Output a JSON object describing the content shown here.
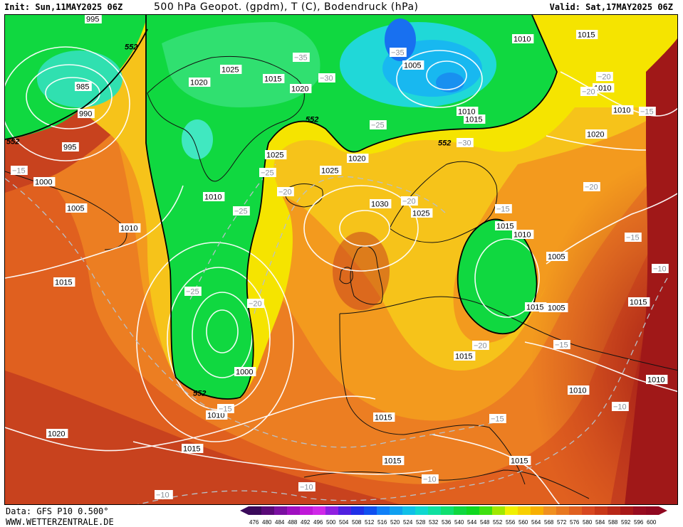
{
  "header": {
    "init": "Init: Sun,11MAY2025 06Z",
    "title": "500 hPa Geopot. (gpdm), T (C), Bodendruck (hPa)",
    "valid": "Valid: Sat,17MAY2025 06Z"
  },
  "footer": {
    "source": "Data: GFS P10 0.500°",
    "site": "WWW.WETTERZENTRALE.DE"
  },
  "colors": {
    "ocean_dark": "#c43b1e",
    "orange": "#e8731f",
    "yellow": "#f5e100",
    "green": "#10d840",
    "cyan": "#18c8e8",
    "isobar": "#ffffff",
    "isotherm": "#b0b8c0"
  },
  "legend": {
    "levels": [
      "476",
      "480",
      "484",
      "488",
      "492",
      "496",
      "500",
      "504",
      "508",
      "512",
      "516",
      "520",
      "524",
      "528",
      "532",
      "536",
      "540",
      "544",
      "548",
      "552",
      "556",
      "560",
      "564",
      "568",
      "572",
      "576",
      "580",
      "584",
      "588",
      "592",
      "596",
      "600"
    ],
    "colors": [
      "#3a0a5a",
      "#5a0a78",
      "#7a10a0",
      "#a010c0",
      "#c018d8",
      "#d028e8",
      "#9020e0",
      "#5020e0",
      "#2030e8",
      "#1050f0",
      "#1080f8",
      "#10a0f0",
      "#10c0e8",
      "#10d8d0",
      "#10e0a0",
      "#10e070",
      "#10d840",
      "#10d820",
      "#40e010",
      "#a0e800",
      "#f0f000",
      "#f8d000",
      "#f8b000",
      "#f09020",
      "#e87820",
      "#e06020",
      "#d84820",
      "#c83818",
      "#b82818",
      "#a81818",
      "#980c20",
      "#900820"
    ]
  },
  "pressure_labels": [
    {
      "text": "995"
    },
    {
      "text": "985"
    },
    {
      "text": "990"
    },
    {
      "text": "995"
    },
    {
      "text": "1000"
    },
    {
      "text": "1005"
    },
    {
      "text": "1010"
    },
    {
      "text": "1015"
    },
    {
      "text": "1020"
    },
    {
      "text": "1025"
    },
    {
      "text": "1015"
    },
    {
      "text": "1020"
    },
    {
      "text": "1025"
    },
    {
      "text": "1025"
    },
    {
      "text": "1020"
    },
    {
      "text": "1010"
    },
    {
      "text": "1030"
    },
    {
      "text": "1025"
    },
    {
      "text": "1005"
    },
    {
      "text": "1000"
    },
    {
      "text": "1010"
    },
    {
      "text": "1020"
    },
    {
      "text": "1015"
    },
    {
      "text": "1015"
    },
    {
      "text": "1010"
    },
    {
      "text": "1005"
    },
    {
      "text": "1010"
    },
    {
      "text": "1005"
    },
    {
      "text": "1010"
    },
    {
      "text": "1015"
    },
    {
      "text": "1010"
    },
    {
      "text": "1010"
    },
    {
      "text": "1015"
    },
    {
      "text": "1015"
    },
    {
      "text": "1005"
    },
    {
      "text": "1010"
    },
    {
      "text": "1020"
    },
    {
      "text": "1015"
    },
    {
      "text": "1010"
    },
    {
      "text": "1015"
    },
    {
      "text": "1020"
    },
    {
      "text": "1015"
    },
    {
      "text": "1010"
    },
    {
      "text": "1015"
    },
    {
      "text": "1015"
    }
  ],
  "temp_labels": [
    {
      "text": "-35"
    },
    {
      "text": "-30"
    },
    {
      "text": "-35"
    },
    {
      "text": "-25"
    },
    {
      "text": "-20"
    },
    {
      "text": "-15"
    },
    {
      "text": "-25"
    },
    {
      "text": "-25"
    },
    {
      "text": "-20"
    },
    {
      "text": "-25"
    },
    {
      "text": "-20"
    },
    {
      "text": "-20"
    },
    {
      "text": "-15"
    },
    {
      "text": "-15"
    },
    {
      "text": "-20"
    },
    {
      "text": "-20"
    },
    {
      "text": "-10"
    },
    {
      "text": "-15"
    },
    {
      "text": "-15"
    },
    {
      "text": "-10"
    },
    {
      "text": "-10"
    },
    {
      "text": "-15"
    },
    {
      "text": "-10"
    },
    {
      "text": "-10"
    },
    {
      "text": "-10"
    },
    {
      "text": "-20"
    },
    {
      "text": "-15"
    },
    {
      "text": "-30"
    }
  ],
  "contour_labels": [
    {
      "text": "552"
    },
    {
      "text": "552"
    },
    {
      "text": "552"
    },
    {
      "text": "552"
    },
    {
      "text": "552"
    }
  ]
}
